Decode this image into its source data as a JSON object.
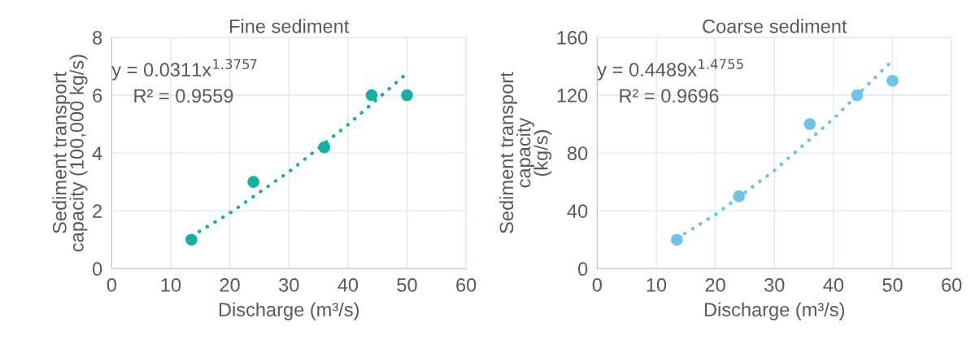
{
  "chart_data": [
    {
      "type": "scatter",
      "title": "Fine sediment",
      "xlabel": "Discharge (m³/s)",
      "ylabel": "Sediment transport\ncapacity (100,000 kg/s)",
      "xlim": [
        0,
        60
      ],
      "xticks": [
        0,
        10,
        20,
        30,
        40,
        50,
        60
      ],
      "ylim": [
        0,
        8
      ],
      "yticks": [
        0,
        2,
        4,
        6,
        8
      ],
      "grid": true,
      "legend": false,
      "marker": "circle",
      "annotations": [
        "y = 0.0311x$^{1.3757}$",
        "R² = 0.9559"
      ],
      "series": [
        {
          "color": "#14b0a0",
          "x": [
            13.5,
            24,
            36,
            44,
            50
          ],
          "values": [
            1,
            3,
            4.2,
            6,
            6
          ]
        },
        {
          "type": "line",
          "color": "#14b0a0",
          "line_style": "dotted",
          "marker": "none",
          "x": [
            13.5,
            20,
            30,
            40,
            50
          ],
          "values": [
            1.12,
            1.92,
            3.35,
            4.98,
            6.76
          ]
        }
      ]
    },
    {
      "type": "scatter",
      "title": "Coarse sediment",
      "xlabel": "Discharge (m³/s)",
      "ylabel": "Sediment transport\ncapacity\n(kg/s)",
      "xlim": [
        0,
        60
      ],
      "xticks": [
        0,
        10,
        20,
        30,
        40,
        50,
        60
      ],
      "ylim": [
        0,
        160
      ],
      "yticks": [
        0,
        40,
        80,
        120,
        160
      ],
      "grid": true,
      "legend": false,
      "marker": "circle",
      "annotations": [
        "y = 0.4489x$^{1.4755}$",
        "R² = 0.9696"
      ],
      "series": [
        {
          "color": "#6ec3e8",
          "x": [
            13.5,
            24,
            36,
            44,
            50
          ],
          "values": [
            20,
            50,
            100,
            120,
            130
          ]
        },
        {
          "type": "line",
          "color": "#6ec3e8",
          "line_style": "dotted",
          "marker": "none",
          "x": [
            13.5,
            20,
            30,
            40,
            50
          ],
          "values": [
            20.9,
            37.3,
            67.9,
            103.7,
            144.1
          ]
        }
      ]
    }
  ]
}
